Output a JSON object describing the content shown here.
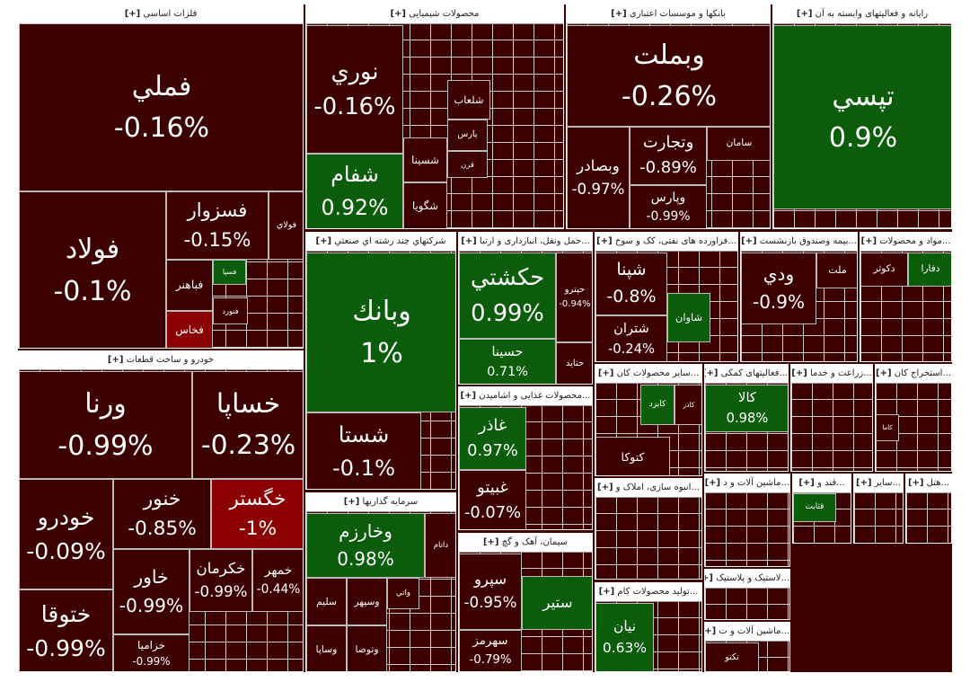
{
  "expand_label": "[+]",
  "sectors": [
    {
      "title": "فلزات اساسی",
      "tiles": [
        {
          "label": "فملي",
          "change": "-0.16%"
        },
        {
          "label": "فولاد",
          "change": "-0.1%"
        },
        {
          "label": "فسزوار",
          "change": "-0.15%"
        },
        {
          "label": "فولاي"
        },
        {
          "label": "فباهنر"
        },
        {
          "label": "فسپا"
        },
        {
          "label": "فنورد"
        },
        {
          "label": "فخاس"
        }
      ]
    },
    {
      "title": "خودرو و ساخت قطعات",
      "tiles": [
        {
          "label": "ورنا",
          "change": "-0.99%"
        },
        {
          "label": "خساپا",
          "change": "-0.23%"
        },
        {
          "label": "خودرو",
          "change": "-0.09%"
        },
        {
          "label": "خنور",
          "change": "-0.85%"
        },
        {
          "label": "خگستر",
          "change": "-1%"
        },
        {
          "label": "خاور",
          "change": "-0.99%"
        },
        {
          "label": "خكرمان",
          "change": "-0.99%"
        },
        {
          "label": "خمهر",
          "change": "-0.44%"
        },
        {
          "label": "ختوقا",
          "change": "-0.99%"
        },
        {
          "label": "خزامیا",
          "change": "-0.99%"
        }
      ]
    },
    {
      "title": "محصولات شیمیایی",
      "tiles": [
        {
          "label": "نوري",
          "change": "-0.16%"
        },
        {
          "label": "شفام",
          "change": "0.92%"
        },
        {
          "label": "شلعاب"
        },
        {
          "label": "پارس"
        },
        {
          "label": "قرن"
        },
        {
          "label": "شسينا"
        },
        {
          "label": "شگويا"
        }
      ]
    },
    {
      "title": "بانکها و موسسات اعتباری",
      "tiles": [
        {
          "label": "وبملت",
          "change": "-0.26%"
        },
        {
          "label": "وبصادر",
          "change": "-0.97%"
        },
        {
          "label": "وتجارت",
          "change": "-0.89%"
        },
        {
          "label": "سامان"
        },
        {
          "label": "وپارس",
          "change": "-0.99%"
        }
      ]
    },
    {
      "title": "رایانه و فعالیتهای وابسته به آن",
      "tiles": [
        {
          "label": "تپسي",
          "change": "0.9%"
        }
      ]
    },
    {
      "title": "شرکتهاي چند رشته اي صنعتي",
      "tiles": [
        {
          "label": "وبانك",
          "change": "1%"
        },
        {
          "label": "شستا",
          "change": "-0.1%"
        }
      ]
    },
    {
      "title": "سرمایه گذاریها",
      "tiles": [
        {
          "label": "وخارزم",
          "change": "0.98%"
        },
        {
          "label": "داتام"
        },
        {
          "label": "سليم"
        },
        {
          "label": "وسپهر"
        },
        {
          "label": "واتي"
        },
        {
          "label": "وساپا"
        },
        {
          "label": "وتوصا"
        }
      ]
    },
    {
      "title": "...حمل ونقل، انبارداری و ارتبا",
      "tiles": [
        {
          "label": "حكشتي",
          "change": "0.99%"
        },
        {
          "label": "حسينا",
          "change": "0.71%"
        },
        {
          "label": "حپترو",
          "change": "-0.94%"
        },
        {
          "label": "حتايد"
        }
      ]
    },
    {
      "title": "...محصولات غذایی و اشامیدن",
      "tiles": [
        {
          "label": "غاذر",
          "change": "0.97%"
        },
        {
          "label": "غبيتو",
          "change": "-0.07%"
        }
      ]
    },
    {
      "title": "سیمان، آهک و گچ",
      "tiles": [
        {
          "label": "سپرو",
          "change": "-0.95%"
        },
        {
          "label": "ستير"
        },
        {
          "label": "سهرمز",
          "change": "-0.79%"
        }
      ]
    },
    {
      "title": "...فراورده های نفتی، کک و سوخ",
      "tiles": [
        {
          "label": "شپنا",
          "change": "-0.8%"
        },
        {
          "label": "شاوان"
        },
        {
          "label": "شتران",
          "change": "-0.24%"
        }
      ]
    },
    {
      "title": "...بیمه وصندوق بازنشست",
      "tiles": [
        {
          "label": "ودي",
          "change": "-0.9%"
        },
        {
          "label": "ملت"
        }
      ]
    },
    {
      "title": "...مواد و محصولات",
      "tiles": [
        {
          "label": "دفارا"
        },
        {
          "label": "دكوثر"
        }
      ]
    },
    {
      "title": "...سایر محصولات کان",
      "tiles": [
        {
          "label": "كايزد"
        },
        {
          "label": "كاذر"
        },
        {
          "label": "كتوكا"
        }
      ]
    },
    {
      "title": "...فعالیتهای کمکی",
      "tiles": [
        {
          "label": "كالا",
          "change": "0.98%"
        }
      ]
    },
    {
      "title": "...زراعت و خدما",
      "tiles": []
    },
    {
      "title": "...استخراج کان",
      "tiles": [
        {
          "label": "كاما"
        }
      ]
    },
    {
      "title": "...انبوه سازی، املاک و",
      "tiles": []
    },
    {
      "title": "...ماشین آلات و د",
      "tiles": []
    },
    {
      "title": "...قند و",
      "tiles": [
        {
          "label": "قثابت"
        }
      ]
    },
    {
      "title": "...سایر",
      "tiles": []
    },
    {
      "title": "...هتل",
      "tiles": []
    },
    {
      "title": "...تولید محصولات کام",
      "tiles": [
        {
          "label": "نيان",
          "change": "0.63%"
        }
      ]
    },
    {
      "title": "...لاستیک و پلاستیک",
      "tiles": []
    },
    {
      "title": "...ماشین آلات و ت",
      "tiles": [
        {
          "label": "تكنو"
        }
      ]
    }
  ]
}
